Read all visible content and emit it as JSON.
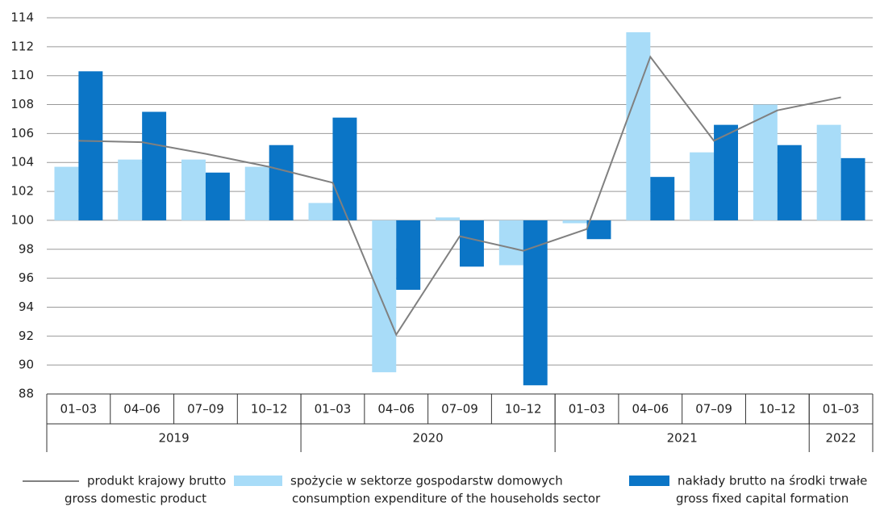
{
  "chart_data": {
    "type": "bar-line",
    "groups": [
      {
        "label": "2019",
        "categories": [
          "01–03",
          "04–06",
          "07–09",
          "10–12"
        ]
      },
      {
        "label": "2020",
        "categories": [
          "01–03",
          "04–06",
          "07–09",
          "10–12"
        ]
      },
      {
        "label": "2021",
        "categories": [
          "01–03",
          "04–06",
          "07–09",
          "10–12"
        ]
      },
      {
        "label": "2022",
        "categories": [
          "01–03"
        ]
      }
    ],
    "series": [
      {
        "name": "produkt krajowy brutto",
        "name_en": "gross domestic product",
        "type": "line",
        "color": "#808080",
        "values": [
          105.5,
          105.4,
          104.6,
          103.7,
          102.6,
          92.1,
          98.9,
          97.9,
          99.4,
          111.3,
          105.5,
          107.6,
          108.5
        ]
      },
      {
        "name": "spożycie w sektorze gospodarstw domowych",
        "name_en": "consumption expenditure of the households sector",
        "type": "bar",
        "color": "#a8dcf8",
        "values": [
          103.7,
          104.2,
          104.2,
          103.7,
          101.2,
          89.5,
          100.2,
          96.9,
          99.8,
          113.0,
          104.7,
          108.0,
          106.6
        ]
      },
      {
        "name": "nakłady brutto na środki trwałe",
        "name_en": "gross fixed capital formation",
        "type": "bar",
        "color": "#0b75c6",
        "values": [
          110.3,
          107.5,
          103.3,
          105.2,
          107.1,
          95.2,
          96.8,
          88.6,
          98.7,
          103.0,
          106.6,
          105.2,
          104.3
        ]
      }
    ],
    "bar_base": 100,
    "ylim": [
      88,
      114
    ],
    "yticks": [
      88,
      90,
      92,
      94,
      96,
      98,
      100,
      102,
      104,
      106,
      108,
      110,
      112,
      114
    ],
    "grid": true
  }
}
